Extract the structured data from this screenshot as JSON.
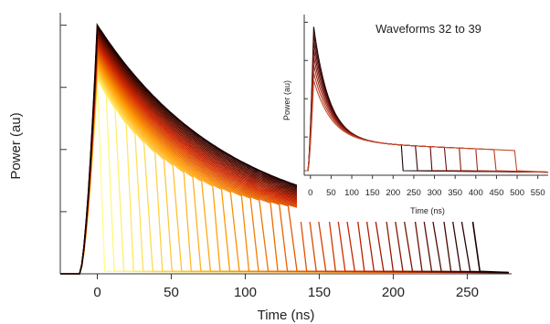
{
  "chart_data": [
    {
      "type": "line",
      "title": "",
      "xlabel": "Time (ns)",
      "ylabel": "Power (au)",
      "xlim": [
        -25,
        280
      ],
      "ylim": [
        0,
        1.05
      ],
      "xticks": [
        0,
        50,
        100,
        150,
        200,
        250
      ],
      "y_tick_labels_shown": false,
      "grid": false,
      "legend": "none",
      "color_scale": [
        "#ffff80",
        "#ff9900",
        "#cc2200",
        "#1a0000"
      ],
      "series": {
        "count": 40,
        "peak_time_ns": 0,
        "rise_start_ns": -12,
        "turn_off_start_ns": 0,
        "turn_off_step_ns": 6.5,
        "last_turn_off_ns": 258,
        "peak_power_range": [
          0.78,
          1.0
        ],
        "baseline_power": 0.0,
        "fall_time_ns": 5
      }
    },
    {
      "type": "line",
      "title": "Waveforms 32 to 39",
      "xlabel": "Time (ns)",
      "ylabel": "Power (au)",
      "xlim": [
        -15,
        575
      ],
      "ylim": [
        0,
        1.05
      ],
      "xticks": [
        0,
        50,
        100,
        150,
        200,
        250,
        300,
        350,
        400,
        450,
        500,
        550
      ],
      "y_tick_labels_shown": false,
      "grid": false,
      "legend": "none",
      "series": {
        "count": 8,
        "turn_off_ns": [
          220,
          255,
          290,
          325,
          360,
          400,
          445,
          495
        ],
        "peak_power_range": [
          0.62,
          0.97
        ],
        "plateau_power": 0.22
      }
    }
  ]
}
